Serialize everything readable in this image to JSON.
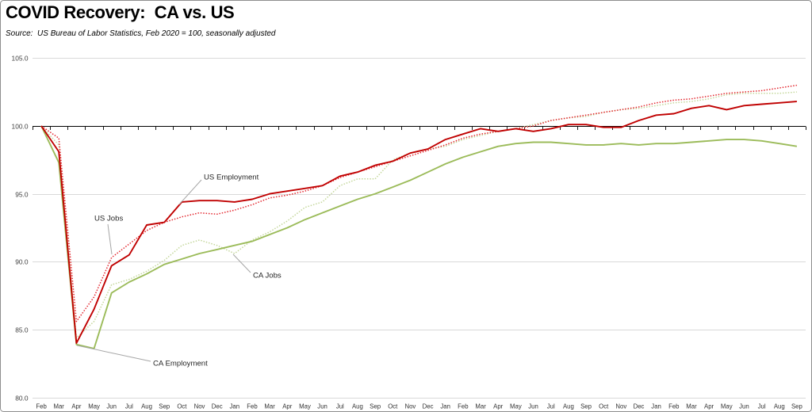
{
  "chart_data": {
    "type": "line",
    "title": "COVID Recovery:  CA vs. US",
    "subtitle": "Source:  US Bureau of Labor Statistics, Feb 2020 = 100, seasonally adjusted",
    "x": [
      "Feb",
      "Mar",
      "Apr",
      "May",
      "Jun",
      "Jul",
      "Aug",
      "Sep",
      "Oct",
      "Nov",
      "Dec",
      "Jan",
      "Feb",
      "Mar",
      "Apr",
      "May",
      "Jun",
      "Jul",
      "Aug",
      "Sep",
      "Oct",
      "Nov",
      "Dec",
      "Jan",
      "Feb",
      "Mar",
      "Apr",
      "May",
      "Jun",
      "Jul",
      "Aug",
      "Sep",
      "Oct",
      "Nov",
      "Dec",
      "Jan",
      "Feb",
      "Mar",
      "Apr",
      "May",
      "Jun",
      "Jul",
      "Aug",
      "Sep"
    ],
    "ylim": [
      80,
      105
    ],
    "yticks": [
      80,
      85,
      90,
      95,
      100,
      105
    ],
    "ytick_labels": [
      "80.0",
      "85.0",
      "90.0",
      "95.0",
      "100.0",
      "105.0"
    ],
    "reference_line": 100,
    "grid": true,
    "legend_shown": false,
    "series": [
      {
        "name": "US Employment",
        "color": "#C00000",
        "dotted": false,
        "values": [
          100,
          98.1,
          84.0,
          86.5,
          89.7,
          90.5,
          92.7,
          92.9,
          94.4,
          94.5,
          94.5,
          94.4,
          94.6,
          95.0,
          95.2,
          95.4,
          95.6,
          96.3,
          96.6,
          97.1,
          97.4,
          98.0,
          98.3,
          99.0,
          99.4,
          99.8,
          99.6,
          99.8,
          99.6,
          99.8,
          100.1,
          100.1,
          99.9,
          99.9,
          100.4,
          100.8,
          100.9,
          101.3,
          101.5,
          101.2,
          101.5,
          101.6,
          101.7,
          101.8
        ]
      },
      {
        "name": "US Jobs",
        "color": "#E3262E",
        "dotted": true,
        "values": [
          100,
          99.1,
          85.6,
          87.4,
          90.3,
          91.3,
          92.3,
          92.9,
          93.3,
          93.6,
          93.5,
          93.8,
          94.2,
          94.7,
          94.9,
          95.2,
          95.6,
          96.2,
          96.6,
          97.0,
          97.4,
          97.8,
          98.2,
          98.6,
          99.1,
          99.4,
          99.6,
          99.8,
          100.0,
          100.4,
          100.6,
          100.8,
          101.0,
          101.2,
          101.4,
          101.7,
          101.9,
          102.0,
          102.2,
          102.4,
          102.5,
          102.6,
          102.8,
          103.0
        ]
      },
      {
        "name": "CA Employment",
        "color": "#9BBB59",
        "dotted": false,
        "values": [
          100,
          97.3,
          83.9,
          83.6,
          87.7,
          88.5,
          89.1,
          89.8,
          90.2,
          90.6,
          90.9,
          91.2,
          91.5,
          92.0,
          92.5,
          93.1,
          93.6,
          94.1,
          94.6,
          95.0,
          95.5,
          96.0,
          96.6,
          97.2,
          97.7,
          98.1,
          98.5,
          98.7,
          98.8,
          98.8,
          98.7,
          98.6,
          98.6,
          98.7,
          98.6,
          98.7,
          98.7,
          98.8,
          98.9,
          99.0,
          99.0,
          98.9,
          98.7,
          98.5
        ]
      },
      {
        "name": "CA Jobs",
        "color": "#C4D79B",
        "dotted": true,
        "values": [
          100,
          98.6,
          84.4,
          85.6,
          88.3,
          88.7,
          89.3,
          90.1,
          91.2,
          91.6,
          91.2,
          90.6,
          91.6,
          92.2,
          93.0,
          94.0,
          94.4,
          95.6,
          96.1,
          96.1,
          97.5,
          98.0,
          98.3,
          98.5,
          99.0,
          99.3,
          99.6,
          99.8,
          100.1,
          100.4,
          100.6,
          100.7,
          101.0,
          101.2,
          101.3,
          101.5,
          101.7,
          101.8,
          102.0,
          102.3,
          102.4,
          102.4,
          102.4,
          102.5
        ]
      }
    ]
  }
}
